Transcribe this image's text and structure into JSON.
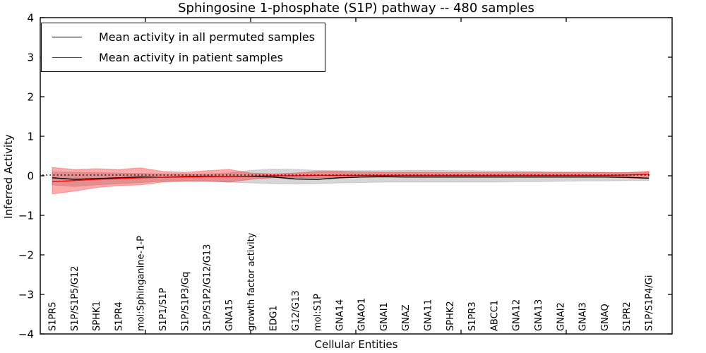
{
  "figure": {
    "title": "Sphingosine 1-phosphate (S1P) pathway -- 480 samples",
    "xlabel": "Cellular Entities",
    "ylabel": "Inferred Activity"
  },
  "legend": {
    "entries": [
      {
        "label": "Mean activity in all permuted samples",
        "color": "#000000"
      },
      {
        "label": "Mean activity in patient samples",
        "color": "#ff0000"
      }
    ]
  },
  "chart_data": {
    "type": "line",
    "title": "Sphingosine 1-phosphate (S1P) pathway -- 480 samples",
    "xlabel": "Cellular Entities",
    "ylabel": "Inferred Activity",
    "ylim": [
      -4,
      4
    ],
    "yticks": [
      4,
      3,
      2,
      1,
      0,
      -1,
      -2,
      -3,
      -4
    ],
    "ytick_labels": [
      "4",
      "3",
      "2",
      "1",
      "0",
      "−1",
      "−2",
      "−3",
      "−4"
    ],
    "grid": false,
    "legend_position": "upper-left",
    "categories": [
      "S1PR5",
      "S1P/S1P5/G12",
      "SPHK1",
      "S1PR4",
      "mol:Sphinganine-1-P",
      "S1P1/S1P",
      "S1P/S1P3/Gq",
      "S1P/S1P2/G12/G13",
      "GNA15",
      "growth factor activity",
      "EDG1",
      "G12/G13",
      "mol:S1P",
      "GNA14",
      "GNAO1",
      "GNAI1",
      "GNAZ",
      "GNA11",
      "SPHK2",
      "S1PR3",
      "ABCC1",
      "GNA12",
      "GNA13",
      "GNAI2",
      "GNAI3",
      "GNAQ",
      "S1PR2",
      "S1P/S1P4/Gi"
    ],
    "series": [
      {
        "name": "Mean activity in all permuted samples",
        "color": "#000000",
        "style": "solid",
        "values": [
          -0.05,
          -0.09,
          -0.07,
          -0.05,
          -0.03,
          -0.04,
          -0.02,
          -0.01,
          -0.02,
          -0.02,
          -0.03,
          -0.08,
          -0.09,
          -0.05,
          -0.03,
          -0.02,
          -0.03,
          -0.03,
          -0.03,
          -0.03,
          -0.03,
          -0.03,
          -0.03,
          -0.03,
          -0.03,
          -0.03,
          -0.04,
          -0.06
        ]
      },
      {
        "name": "Mean activity in patient samples",
        "color": "#ff0000",
        "style": "solid",
        "values": [
          -0.15,
          -0.12,
          -0.09,
          -0.07,
          -0.05,
          -0.04,
          -0.03,
          -0.02,
          -0.02,
          -0.01,
          0.0,
          0.0,
          0.01,
          0.01,
          0.01,
          0.01,
          0.01,
          0.01,
          0.01,
          0.01,
          0.01,
          0.01,
          0.01,
          0.01,
          0.01,
          0.01,
          0.02,
          0.04
        ]
      }
    ],
    "baseline_dotted": {
      "name": "zero-reference",
      "value": 0.02,
      "color": "#000000",
      "style": "dotted"
    },
    "bands": [
      {
        "name": "permuted-activity-range",
        "color": "#808080",
        "opacity": 0.32,
        "upper": [
          0.1,
          0.09,
          0.08,
          0.07,
          0.06,
          0.05,
          0.05,
          0.05,
          0.07,
          0.14,
          0.17,
          0.16,
          0.14,
          0.13,
          0.13,
          0.13,
          0.14,
          0.14,
          0.13,
          0.13,
          0.12,
          0.12,
          0.11,
          0.1,
          0.1,
          0.09,
          0.08,
          0.08
        ],
        "lower": [
          -0.23,
          -0.27,
          -0.23,
          -0.2,
          -0.17,
          -0.14,
          -0.14,
          -0.13,
          -0.16,
          -0.18,
          -0.2,
          -0.21,
          -0.2,
          -0.18,
          -0.17,
          -0.16,
          -0.16,
          -0.16,
          -0.16,
          -0.16,
          -0.16,
          -0.15,
          -0.15,
          -0.14,
          -0.13,
          -0.13,
          -0.12,
          -0.12
        ]
      },
      {
        "name": "patient-activity-range",
        "color": "#ff0000",
        "opacity": 0.33,
        "upper": [
          0.21,
          0.16,
          0.18,
          0.16,
          0.2,
          0.11,
          0.09,
          0.13,
          0.16,
          0.07,
          0.05,
          0.07,
          0.11,
          0.11,
          0.1,
          0.09,
          0.09,
          0.09,
          0.08,
          0.08,
          0.08,
          0.08,
          0.08,
          0.08,
          0.08,
          0.08,
          0.08,
          0.12
        ],
        "lower": [
          -0.46,
          -0.39,
          -0.3,
          -0.25,
          -0.23,
          -0.16,
          -0.13,
          -0.14,
          -0.16,
          -0.09,
          -0.05,
          -0.05,
          -0.05,
          -0.04,
          -0.04,
          -0.04,
          -0.04,
          -0.04,
          -0.04,
          -0.04,
          -0.04,
          -0.04,
          -0.04,
          -0.04,
          -0.04,
          -0.04,
          -0.05,
          -0.07
        ]
      }
    ]
  }
}
